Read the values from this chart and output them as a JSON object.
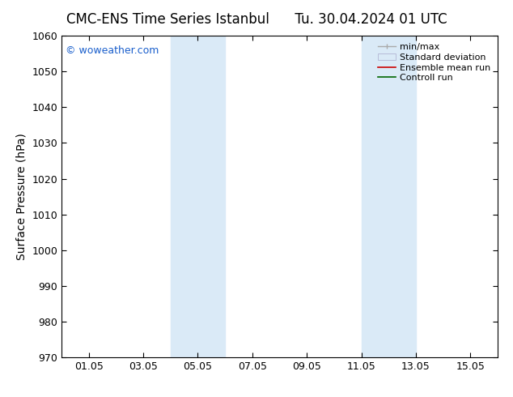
{
  "title_left": "CMC-ENS Time Series Istanbul",
  "title_right": "Tu. 30.04.2024 01 UTC",
  "ylabel": "Surface Pressure (hPa)",
  "ylim": [
    970,
    1060
  ],
  "yticks": [
    970,
    980,
    990,
    1000,
    1010,
    1020,
    1030,
    1040,
    1050,
    1060
  ],
  "xtick_labels": [
    "01.05",
    "03.05",
    "05.05",
    "07.05",
    "09.05",
    "11.05",
    "13.05",
    "15.05"
  ],
  "xtick_positions": [
    1,
    3,
    5,
    7,
    9,
    11,
    13,
    15
  ],
  "xlim": [
    0,
    16
  ],
  "shaded_bands": [
    {
      "xmin": 4.0,
      "xmax": 6.0
    },
    {
      "xmin": 11.0,
      "xmax": 13.0
    }
  ],
  "shaded_color": "#daeaf7",
  "watermark_text": "© woweather.com",
  "watermark_color": "#1a5fcc",
  "background_color": "#ffffff",
  "legend_labels": [
    "min/max",
    "Standard deviation",
    "Ensemble mean run",
    "Controll run"
  ],
  "title_fontsize": 12,
  "axis_label_fontsize": 10,
  "tick_fontsize": 9,
  "legend_fontsize": 8
}
